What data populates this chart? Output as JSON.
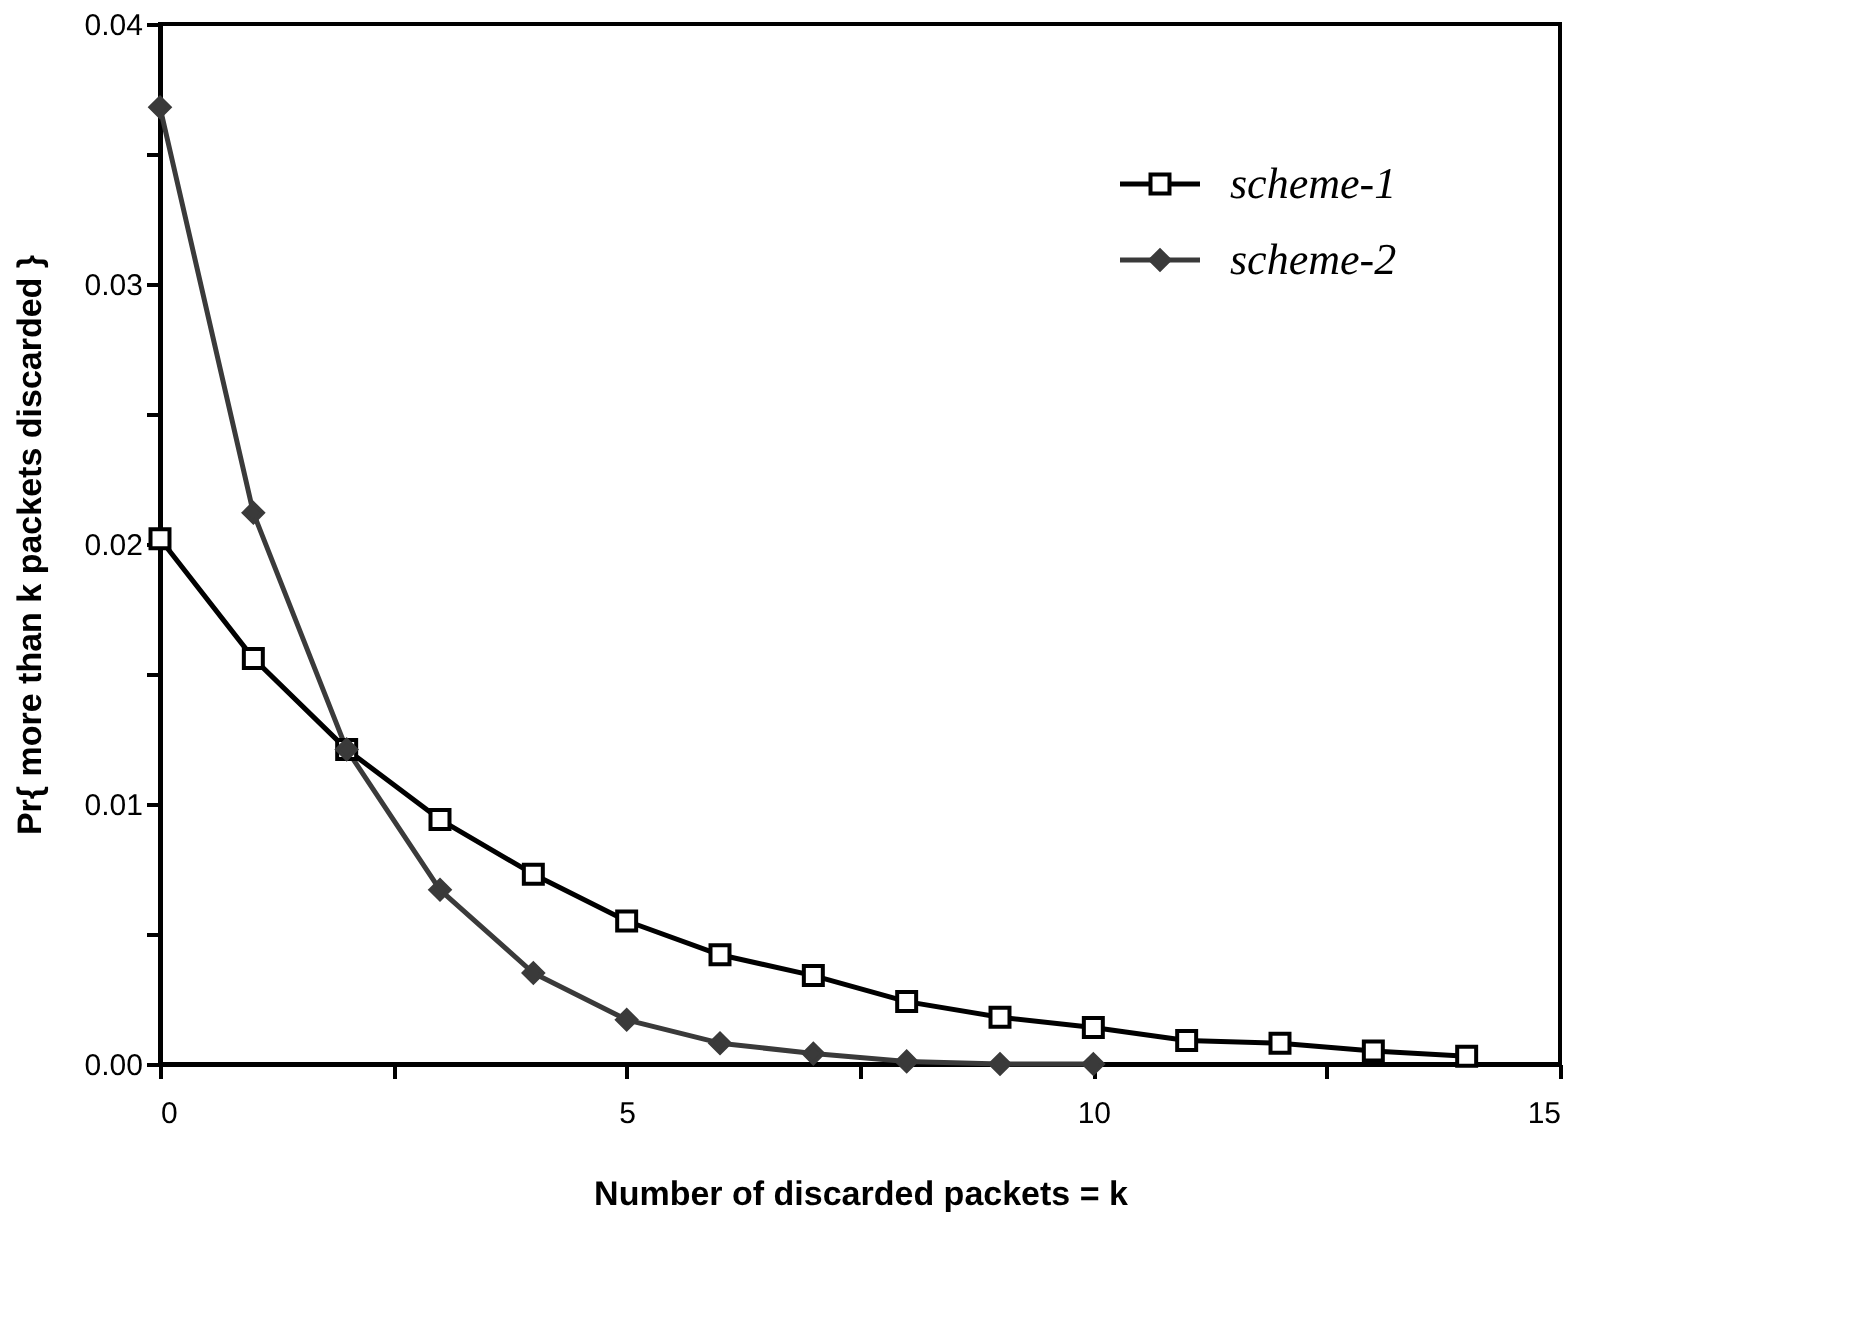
{
  "chart_data": {
    "type": "line",
    "xlabel": "Number of discarded packets = k",
    "ylabel": "Pr{ more than k packets discarded }",
    "x": [
      0,
      1,
      2,
      3,
      4,
      5,
      6,
      7,
      8,
      9,
      10,
      11,
      12,
      13,
      14
    ],
    "series": [
      {
        "name": "scheme-1",
        "color": "#000000",
        "marker": "square",
        "values": [
          0.0202,
          0.0156,
          0.0121,
          0.0094,
          0.0073,
          0.0055,
          0.0042,
          0.0034,
          0.0024,
          0.0018,
          0.0014,
          0.0009,
          0.0008,
          0.0005,
          0.0003
        ]
      },
      {
        "name": "scheme-2",
        "color": "#3a3a3a",
        "marker": "diamond",
        "x": [
          0,
          1,
          2,
          3,
          4,
          5,
          6,
          7,
          8,
          9,
          10
        ],
        "values": [
          0.0368,
          0.0212,
          0.0121,
          0.0067,
          0.0035,
          0.0017,
          0.0008,
          0.0004,
          0.0001,
          0.0,
          0.0
        ]
      }
    ],
    "xlim": [
      0,
      15
    ],
    "xticks": [
      0,
      {
        "value": 2.5,
        "label": null
      },
      5,
      {
        "value": 7.5,
        "label": null
      },
      10,
      {
        "value": 12.5,
        "label": null
      },
      15
    ],
    "ylim": [
      0,
      0.04
    ],
    "yticks": [
      {
        "value": 0,
        "label": "0.00"
      },
      {
        "value": 0.005,
        "label": null
      },
      0.01,
      {
        "value": 0.015,
        "label": null
      },
      0.02,
      {
        "value": 0.025,
        "label": null
      },
      0.03,
      {
        "value": 0.035,
        "label": null
      },
      0.04
    ],
    "legend": "top right",
    "grid": false,
    "line_style": "solid"
  }
}
